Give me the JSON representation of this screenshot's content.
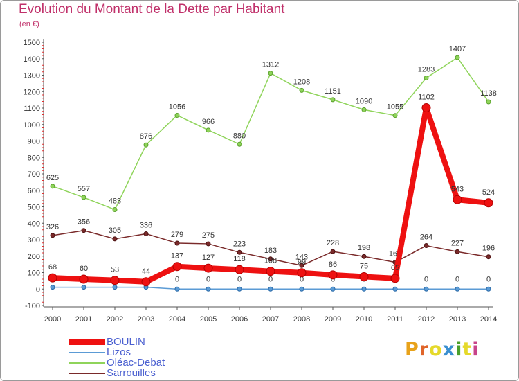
{
  "title": "Evolution du Montant de la Dette par Habitant",
  "unit": "(en €)",
  "brand": {
    "text": "Proxiti",
    "colors": [
      "#e8a21a",
      "#e0652a",
      "#e5d92a",
      "#3a8fd0",
      "#4aa02c",
      "#e5d92a",
      "#c8448a"
    ]
  },
  "chart_data": {
    "type": "line",
    "x": [
      "2000",
      "2001",
      "2002",
      "2003",
      "2004",
      "2005",
      "2006",
      "2007",
      "2008",
      "2009",
      "2010",
      "2011",
      "2012",
      "2013",
      "2014"
    ],
    "ylim": [
      -100,
      1500
    ],
    "yticks": [
      -100,
      0,
      100,
      200,
      300,
      400,
      500,
      600,
      700,
      800,
      900,
      1000,
      1100,
      1200,
      1300,
      1400,
      1500
    ],
    "grid": false,
    "legend_position": "bottom-left",
    "series": [
      {
        "name": "BOULIN",
        "color": "#ee1111",
        "values": [
          68,
          60,
          53,
          44,
          137,
          127,
          118,
          108,
          99,
          86,
          75,
          65,
          1102,
          543,
          524
        ],
        "labels": [
          "68",
          "60",
          "53",
          "44",
          "137",
          "127",
          "118",
          "108",
          "99",
          "86",
          "75",
          "65",
          "1102",
          "543",
          "524"
        ]
      },
      {
        "name": "Lizos",
        "color": "#5b9bd5",
        "values": [
          11,
          11,
          11,
          11,
          0,
          0,
          0,
          0,
          0,
          0,
          0,
          0,
          0,
          0,
          0
        ],
        "labels": [
          "",
          "",
          "",
          "",
          "0",
          "0",
          "0",
          "0",
          "0",
          "0",
          "0",
          "0",
          "0",
          "0",
          "0"
        ]
      },
      {
        "name": "Oléac-Debat",
        "color": "#8fd45a",
        "values": [
          625,
          557,
          483,
          876,
          1056,
          966,
          880,
          1312,
          1208,
          1151,
          1090,
          1055,
          1283,
          1407,
          1138
        ],
        "labels": [
          "625",
          "557",
          "483",
          "876",
          "1056",
          "966",
          "880",
          "1312",
          "1208",
          "1151",
          "1090",
          "1055",
          "1283",
          "1407",
          "1138"
        ]
      },
      {
        "name": "Sarrouilles",
        "color": "#7a2a2a",
        "values": [
          326,
          356,
          305,
          336,
          279,
          275,
          223,
          183,
          143,
          228,
          198,
          163,
          264,
          227,
          196
        ],
        "labels": [
          "326",
          "356",
          "305",
          "336",
          "279",
          "275",
          "223",
          "183",
          "143",
          "228",
          "198",
          "163",
          "264",
          "227",
          "196"
        ]
      }
    ]
  }
}
